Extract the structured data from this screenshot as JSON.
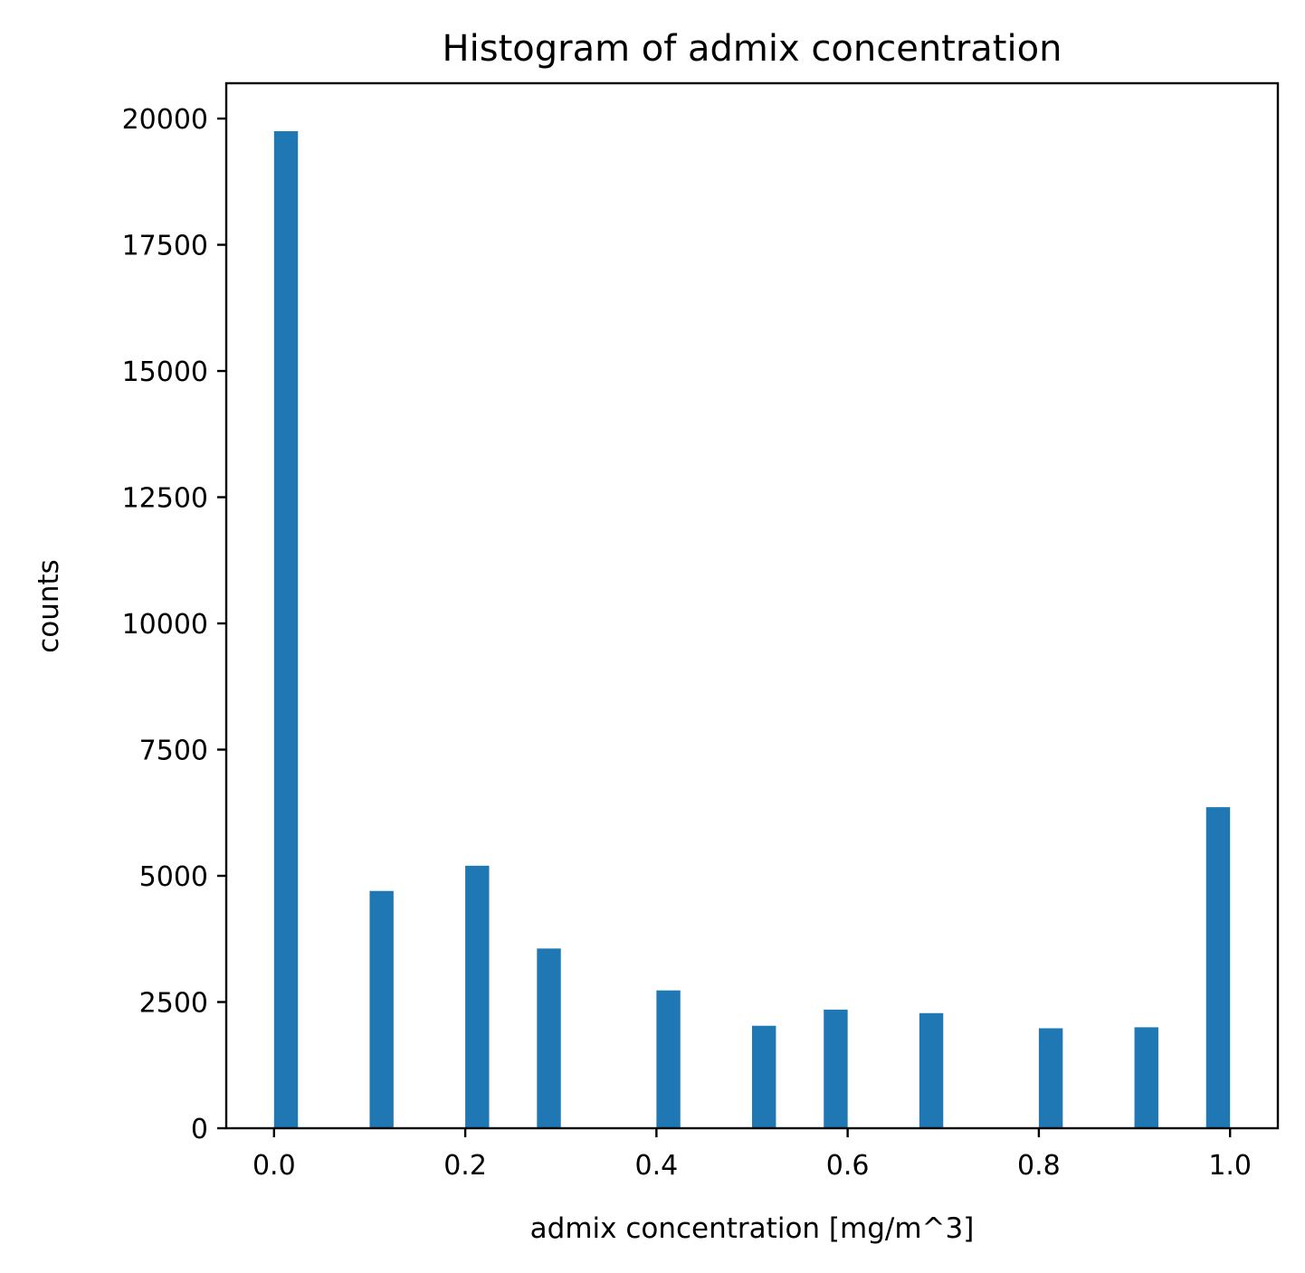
{
  "chart_data": {
    "type": "bar",
    "title": "Histogram of admix concentration",
    "xlabel": "admix concentration [mg/m^3]",
    "ylabel": "counts",
    "bar_color": "#1f77b4",
    "xlim": [
      -0.05,
      1.05
    ],
    "ylim": [
      0,
      20700
    ],
    "xticks": [
      0.0,
      0.2,
      0.4,
      0.6,
      0.8,
      1.0
    ],
    "xtick_labels": [
      "0.0",
      "0.2",
      "0.4",
      "0.6",
      "0.8",
      "1.0"
    ],
    "yticks": [
      0,
      2500,
      5000,
      7500,
      10000,
      12500,
      15000,
      17500,
      20000
    ],
    "ytick_labels": [
      "0",
      "2500",
      "5000",
      "7500",
      "10000",
      "12500",
      "15000",
      "17500",
      "20000"
    ],
    "bin_width": 0.025,
    "bins": [
      {
        "x_start": 0.0,
        "count": 19750
      },
      {
        "x_start": 0.1,
        "count": 4700
      },
      {
        "x_start": 0.2,
        "count": 5200
      },
      {
        "x_start": 0.275,
        "count": 3560
      },
      {
        "x_start": 0.4,
        "count": 2730
      },
      {
        "x_start": 0.5,
        "count": 2030
      },
      {
        "x_start": 0.575,
        "count": 2350
      },
      {
        "x_start": 0.675,
        "count": 2280
      },
      {
        "x_start": 0.8,
        "count": 1980
      },
      {
        "x_start": 0.9,
        "count": 2000
      },
      {
        "x_start": 0.975,
        "count": 6360
      }
    ],
    "grid": false,
    "legend": "none"
  }
}
